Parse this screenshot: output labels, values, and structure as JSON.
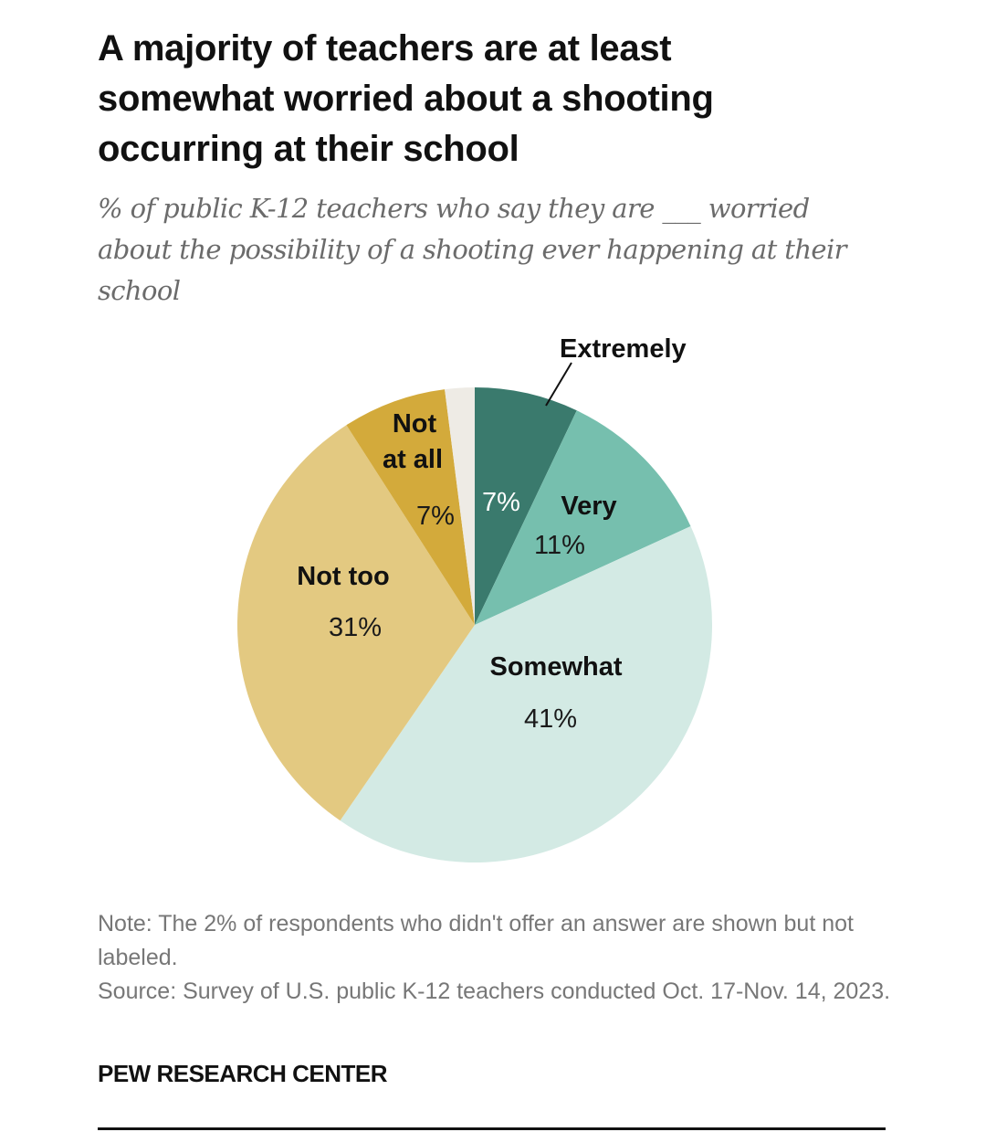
{
  "header": {
    "title": "A majority of teachers are at least somewhat worried about a shooting occurring at their school",
    "subtitle": "% of public K-12 teachers who say they are ___ worried about the possibility of a shooting ever happening at their school"
  },
  "chart_data": {
    "type": "pie",
    "title": "A majority of teachers are at least somewhat worried about a shooting occurring at their school",
    "subtitle": "% of public K-12 teachers who say they are ___ worried about the possibility of a shooting ever happening at their school",
    "start": "12 o'clock",
    "direction": "clockwise",
    "slices": [
      {
        "label": "Extremely",
        "value": 7,
        "value_label": "7%",
        "color": "#3a7a6d",
        "value_color": "#ffffff",
        "labeled": true,
        "leader_line": true
      },
      {
        "label": "Very",
        "value": 11,
        "value_label": "11%",
        "color": "#76bfae",
        "value_color": "#1a1a1a",
        "labeled": true
      },
      {
        "label": "Somewhat",
        "value": 41,
        "value_label": "41%",
        "color": "#d3eae4",
        "value_color": "#1a1a1a",
        "labeled": true
      },
      {
        "label": "Not too",
        "value": 31,
        "value_label": "31%",
        "color": "#e3c981",
        "value_color": "#1a1a1a",
        "labeled": true
      },
      {
        "label": "Not at all",
        "value": 7,
        "value_label": "7%",
        "color": "#d3aa3b",
        "value_color": "#1a1a1a",
        "labeled": true
      },
      {
        "label": "No answer",
        "value": 2,
        "value_label": "",
        "color": "#eeebe5",
        "labeled": false
      }
    ]
  },
  "labels": {
    "extremely": "Extremely",
    "extremely_value": "7%",
    "very": "Very",
    "very_value": "11%",
    "somewhat": "Somewhat",
    "somewhat_value": "41%",
    "not_too": "Not too",
    "not_too_value": "31%",
    "not_at_all_line1": "Not",
    "not_at_all_line2": "at all",
    "not_at_all_value": "7%"
  },
  "footer": {
    "note": "Note: The 2% of respondents who didn't offer an answer are shown but not labeled.",
    "source": "Source: Survey of U.S. public K-12 teachers conducted Oct. 17-Nov. 14, 2023.",
    "brand": "PEW RESEARCH CENTER"
  }
}
